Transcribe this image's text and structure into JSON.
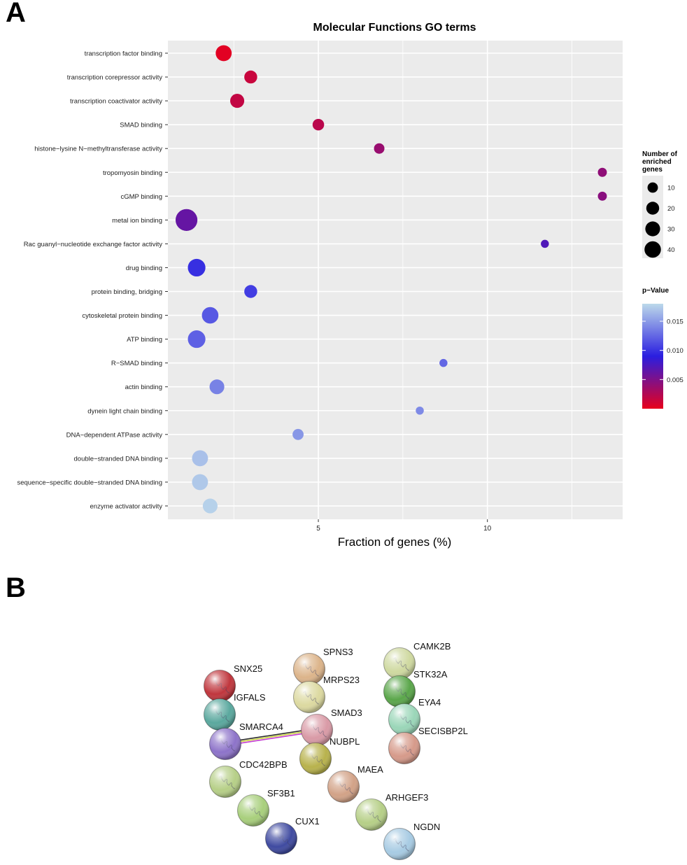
{
  "panels": {
    "a": "A",
    "b": "B"
  },
  "chart_data": {
    "type": "scatter",
    "title": "Molecular Functions GO terms",
    "xlabel": "Fraction of genes (%)",
    "ylabel": "",
    "xlim": [
      0.55,
      14.0
    ],
    "xticks": [
      5,
      10
    ],
    "grid": true,
    "categories": [
      "transcription factor binding",
      "transcription corepressor activity",
      "transcription coactivator activity",
      "SMAD binding",
      "histone−lysine N−methyltransferase activity",
      "tropomyosin binding",
      "cGMP binding",
      "metal ion binding",
      "Rac guanyl−nucleotide exchange factor activity",
      "drug binding",
      "protein binding, bridging",
      "cytoskeletal protein binding",
      "ATP binding",
      "R−SMAD binding",
      "actin binding",
      "dynein light chain binding",
      "DNA−dependent ATPase activity",
      "double−stranded DNA binding",
      "sequence−specific double−stranded DNA binding",
      "enzyme activator activity"
    ],
    "points": [
      {
        "term": "transcription factor binding",
        "x": 2.2,
        "count": 18,
        "p": 0.0003
      },
      {
        "term": "transcription corepressor activity",
        "x": 3.0,
        "count": 9,
        "p": 0.0015
      },
      {
        "term": "transcription coactivator activity",
        "x": 2.6,
        "count": 12,
        "p": 0.0018
      },
      {
        "term": "SMAD binding",
        "x": 5.0,
        "count": 6,
        "p": 0.0022
      },
      {
        "term": "histone−lysine N−methyltransferase activity",
        "x": 6.8,
        "count": 4,
        "p": 0.0038
      },
      {
        "term": "tropomyosin binding",
        "x": 13.4,
        "count": 2,
        "p": 0.0042
      },
      {
        "term": "cGMP binding",
        "x": 13.4,
        "count": 2,
        "p": 0.0045
      },
      {
        "term": "metal ion binding",
        "x": 1.1,
        "count": 44,
        "p": 0.0062
      },
      {
        "term": "Rac guanyl−nucleotide exchange factor activity",
        "x": 11.7,
        "count": 1,
        "p": 0.0072
      },
      {
        "term": "drug binding",
        "x": 1.4,
        "count": 24,
        "p": 0.0098
      },
      {
        "term": "protein binding, bridging",
        "x": 3.0,
        "count": 9,
        "p": 0.0105
      },
      {
        "term": "cytoskeletal protein binding",
        "x": 1.8,
        "count": 20,
        "p": 0.0118
      },
      {
        "term": "ATP binding",
        "x": 1.4,
        "count": 24,
        "p": 0.0122
      },
      {
        "term": "R−SMAD binding",
        "x": 8.7,
        "count": 1,
        "p": 0.0125
      },
      {
        "term": "actin binding",
        "x": 2.0,
        "count": 14,
        "p": 0.0138
      },
      {
        "term": "dynein light chain binding",
        "x": 8.0,
        "count": 1,
        "p": 0.0142
      },
      {
        "term": "DNA−dependent ATPase activity",
        "x": 4.4,
        "count": 5,
        "p": 0.0148
      },
      {
        "term": "double−stranded DNA binding",
        "x": 1.5,
        "count": 18,
        "p": 0.0168
      },
      {
        "term": "sequence−specific double−stranded DNA binding",
        "x": 1.5,
        "count": 18,
        "p": 0.0172
      },
      {
        "term": "enzyme activator activity",
        "x": 1.8,
        "count": 14,
        "p": 0.0176
      }
    ],
    "size_legend": {
      "title_lines": [
        "Number of",
        "enriched",
        "genes"
      ],
      "values": [
        10,
        20,
        30,
        40
      ],
      "labels": [
        "10",
        "20",
        "30",
        "40"
      ]
    },
    "color_legend": {
      "title": "p−Value",
      "range": [
        0.0,
        0.018
      ],
      "ticks": [
        0.005,
        0.01,
        0.015
      ],
      "tick_labels": [
        "0.005",
        "0.010",
        "0.015"
      ]
    },
    "colors": {
      "panel_bg": "#ebebeb",
      "grid": "#ffffff",
      "gradient_low": "#e8001c",
      "gradient_mid": "#2a1ee0",
      "gradient_high": "#bcd9ea"
    }
  },
  "network": {
    "nodes": [
      {
        "name": "SNX25",
        "color": "#c0363d"
      },
      {
        "name": "IGFALS",
        "color": "#5aa89e"
      },
      {
        "name": "SMARCA4",
        "color": "#8d73c9"
      },
      {
        "name": "CDC42BPB",
        "color": "#b6cf87"
      },
      {
        "name": "SF3B1",
        "color": "#a8cf7c"
      },
      {
        "name": "CUX1",
        "color": "#3f4aa0"
      },
      {
        "name": "SPNS3",
        "color": "#dcb48a"
      },
      {
        "name": "MRPS23",
        "color": "#dcd9a0"
      },
      {
        "name": "SMAD3",
        "color": "#d99aa6"
      },
      {
        "name": "NUBPL",
        "color": "#b8b24c"
      },
      {
        "name": "MAEA",
        "color": "#d2a287"
      },
      {
        "name": "ARHGEF3",
        "color": "#b6cf87"
      },
      {
        "name": "CAMK2B",
        "color": "#cfd9a0"
      },
      {
        "name": "STK32A",
        "color": "#5aa64a"
      },
      {
        "name": "EYA4",
        "color": "#9ad6b8"
      },
      {
        "name": "SECISBP2L",
        "color": "#d69a8a"
      },
      {
        "name": "NGDN",
        "color": "#a7cbe3"
      }
    ],
    "edges": [
      {
        "from": "SMARCA4",
        "to": "SMAD3",
        "colors": [
          "#2b2b2b",
          "#c8d23a",
          "#c23bd0"
        ]
      }
    ]
  }
}
